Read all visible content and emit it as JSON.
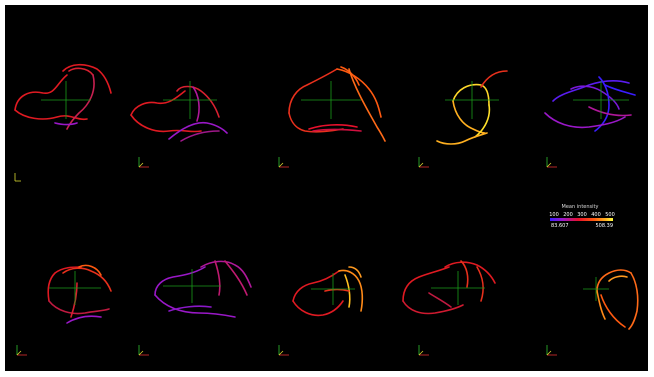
{
  "viewer": {
    "background": "#000000",
    "crosshair_color": "#1a9c1a",
    "axis_colors": {
      "x": "#e03030",
      "y": "#30c030",
      "z": "#d8d830"
    },
    "panel_count": 10
  },
  "legend": {
    "title": "Mean intensity",
    "ticks": [
      "100",
      "200",
      "300",
      "400",
      "500"
    ],
    "min_label": "83.607",
    "max_label": "508.39",
    "gradient": [
      "#3a1cff",
      "#9a18c8",
      "#e8102c",
      "#ff5a10",
      "#ffb020",
      "#ffff40"
    ]
  }
}
